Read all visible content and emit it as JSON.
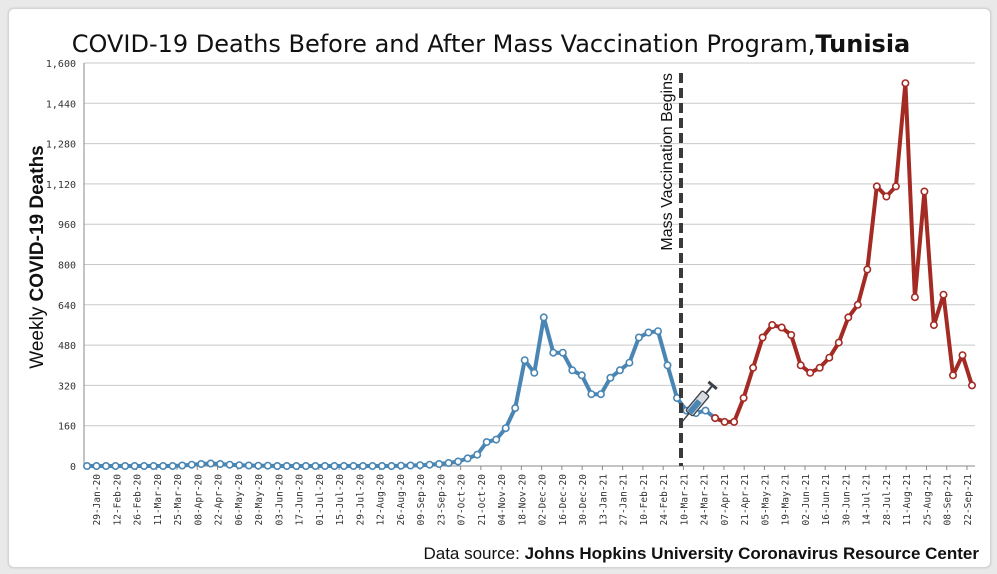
{
  "chart_data": {
    "type": "line",
    "title_prefix": "COVID-19 Deaths Before and After Mass Vaccination Program,",
    "title_country": "Tunisia",
    "ylabel_prefix": "Weekly",
    "ylabel_bold": "COVID-19 Deaths",
    "source_prefix": "Data source:",
    "source_bold": "Johns Hopkins University Coronavirus Resource Center",
    "ylim": [
      0,
      1600
    ],
    "yticks": [
      0,
      160,
      320,
      480,
      640,
      800,
      960,
      1120,
      1280,
      1440,
      1600
    ],
    "ytick_labels": [
      "0",
      "160",
      "320",
      "480",
      "640",
      "800",
      "960",
      "1,120",
      "1,280",
      "1,440",
      "1,600"
    ],
    "xtick_labels": [
      "29-Jan-20",
      "12-Feb-20",
      "26-Feb-20",
      "11-Mar-20",
      "25-Mar-20",
      "08-Apr-20",
      "22-Apr-20",
      "06-May-20",
      "20-May-20",
      "03-Jun-20",
      "17-Jun-20",
      "01-Jul-20",
      "15-Jul-20",
      "29-Jul-20",
      "12-Aug-20",
      "26-Aug-20",
      "09-Sep-20",
      "23-Sep-20",
      "07-Oct-20",
      "21-Oct-20",
      "04-Nov-20",
      "18-Nov-20",
      "02-Dec-20",
      "16-Dec-20",
      "30-Dec-20",
      "13-Jan-21",
      "27-Jan-21",
      "10-Feb-21",
      "24-Feb-21",
      "10-Mar-21",
      "24-Mar-21",
      "07-Apr-21",
      "21-Apr-21",
      "05-May-21",
      "19-May-21",
      "02-Jun-21",
      "16-Jun-21",
      "30-Jun-21",
      "14-Jul-21",
      "28-Jul-21",
      "11-Aug-21",
      "25-Aug-21",
      "08-Sep-21",
      "22-Sep-21"
    ],
    "grid": true,
    "annotation": "Mass Vaccination Begins",
    "vaccination_week_index": 62,
    "series": [
      {
        "color": "#4a86b4",
        "values": [
          0,
          0,
          0,
          0,
          0,
          0,
          0,
          0,
          0,
          0,
          2,
          5,
          8,
          10,
          8,
          5,
          3,
          2,
          1,
          1,
          0,
          0,
          0,
          0,
          0,
          0,
          0,
          0,
          0,
          0,
          0,
          0,
          0,
          1,
          2,
          3,
          5,
          8,
          12,
          18,
          30,
          45,
          95,
          105,
          150,
          230,
          420,
          370,
          590,
          450,
          450,
          380,
          360,
          285,
          285,
          350,
          380,
          410,
          510,
          530,
          535,
          400,
          270,
          220,
          210,
          220,
          190
        ]
      },
      {
        "color": "#a42b24",
        "values": [
          190,
          175,
          175,
          270,
          390,
          510,
          560,
          550,
          520,
          400,
          370,
          390,
          430,
          490,
          590,
          640,
          780,
          1110,
          1070,
          1110,
          1520,
          670,
          1090,
          560,
          680,
          360,
          440,
          320
        ]
      }
    ]
  }
}
